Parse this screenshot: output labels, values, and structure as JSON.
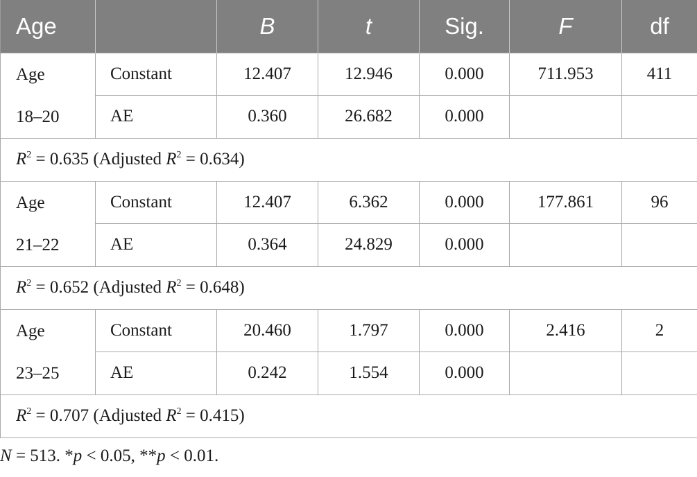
{
  "header": {
    "col_age": "Age",
    "col_blank": "",
    "col_b": "B",
    "col_t": "t",
    "col_sig": "Sig.",
    "col_f": "F",
    "col_df": "df"
  },
  "groups": [
    {
      "label_line1": "Age",
      "label_line2": "18–20",
      "rows": [
        {
          "predictor": "Constant",
          "B": "12.407",
          "t": "12.946",
          "sig": "0.000",
          "F": "711.953",
          "df": "411"
        },
        {
          "predictor": "AE",
          "B": "0.360",
          "t": "26.682",
          "sig": "0.000",
          "F": "",
          "df": ""
        }
      ],
      "summary": {
        "r_letter": "R",
        "r_sup": "2",
        "r_value": " = 0.635 (Adjusted ",
        "adj_letter": "R",
        "adj_sup": "2",
        "adj_value": " = 0.634)"
      }
    },
    {
      "label_line1": "Age",
      "label_line2": "21–22",
      "rows": [
        {
          "predictor": "Constant",
          "B": "12.407",
          "t": "6.362",
          "sig": "0.000",
          "F": "177.861",
          "df": "96"
        },
        {
          "predictor": "AE",
          "B": "0.364",
          "t": "24.829",
          "sig": "0.000",
          "F": "",
          "df": ""
        }
      ],
      "summary": {
        "r_letter": "R",
        "r_sup": "2",
        "r_value": " = 0.652 (Adjusted ",
        "adj_letter": "R",
        "adj_sup": "2",
        "adj_value": " = 0.648)"
      }
    },
    {
      "label_line1": "Age",
      "label_line2": "23–25",
      "rows": [
        {
          "predictor": "Constant",
          "B": "20.460",
          "t": "1.797",
          "sig": "0.000",
          "F": "2.416",
          "df": "2"
        },
        {
          "predictor": "AE",
          "B": "0.242",
          "t": "1.554",
          "sig": "0.000",
          "F": "",
          "df": ""
        }
      ],
      "summary": {
        "r_letter": "R",
        "r_sup": "2",
        "r_value": " = 0.707 (Adjusted ",
        "adj_letter": "R",
        "adj_sup": "2",
        "adj_value": " = 0.415)"
      }
    }
  ],
  "footnote": {
    "n_letter": "N",
    "n_text": " = 513. *",
    "p1_letter": "p",
    "p1_text": " < 0.05, **",
    "p2_letter": "p",
    "p2_text": " < 0.01."
  }
}
